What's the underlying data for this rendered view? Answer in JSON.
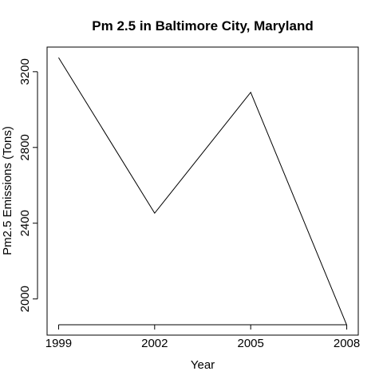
{
  "chart_data": {
    "type": "line",
    "title": "Pm 2.5 in Baltimore City, Maryland",
    "xlabel": "Year",
    "ylabel": "Pm2.5 Emissions (Tons)",
    "x": [
      1999,
      2002,
      2005,
      2008
    ],
    "series": [
      {
        "values": [
          3274,
          2453,
          3091,
          1862
        ]
      }
    ],
    "xticks": [
      "1999",
      "2002",
      "2005",
      "2008"
    ],
    "yticks": [
      "2000",
      "2400",
      "2800",
      "3200"
    ],
    "ylim": [
      1809,
      3330
    ],
    "xlim": [
      1998.64,
      2008.36
    ],
    "grid": false,
    "line_color": "#000000"
  }
}
